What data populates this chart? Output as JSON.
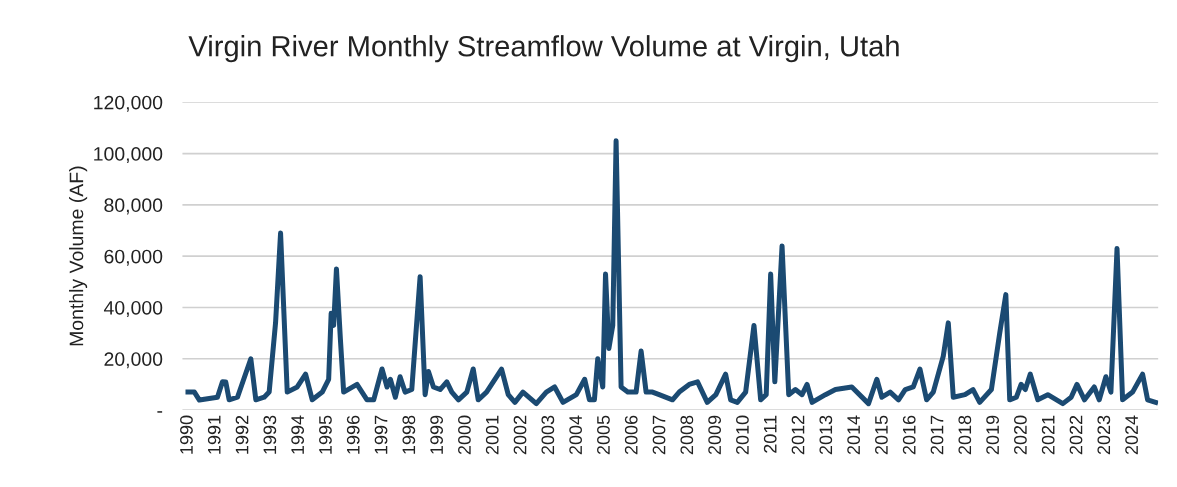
{
  "chart_data": {
    "type": "line",
    "title": "Virgin River Monthly Streamflow Volume at Virgin, Utah",
    "ylabel": "Monthly Volume (AF)",
    "series": [
      {
        "color": "#1b4a72",
        "x": [
          1990.0,
          1990.23,
          1990.41,
          1991.06,
          1991.24,
          1991.36,
          1991.48,
          1991.78,
          1992.26,
          1992.44,
          1992.74,
          1992.92,
          1993.15,
          1993.33,
          1993.57,
          1993.93,
          1994.23,
          1994.47,
          1994.83,
          1995.06,
          1995.15,
          1995.24,
          1995.34,
          1995.48,
          1995.6,
          1996.08,
          1996.44,
          1996.68,
          1996.98,
          1997.16,
          1997.28,
          1997.46,
          1997.63,
          1997.81,
          1998.05,
          1998.35,
          1998.53,
          1998.65,
          1998.83,
          1999.07,
          1999.31,
          1999.49,
          1999.73,
          2000.03,
          2000.26,
          2000.44,
          2000.74,
          2001.28,
          2001.52,
          2001.76,
          2002.05,
          2002.53,
          2002.89,
          2003.19,
          2003.49,
          2003.97,
          2004.27,
          2004.44,
          2004.62,
          2004.74,
          2004.92,
          2005.02,
          2005.14,
          2005.28,
          2005.4,
          2005.58,
          2005.82,
          2006.12,
          2006.3,
          2006.48,
          2006.71,
          2006.95,
          2007.43,
          2007.67,
          2008.03,
          2008.33,
          2008.68,
          2008.99,
          2009.34,
          2009.52,
          2009.76,
          2010.06,
          2010.36,
          2010.6,
          2010.8,
          2010.96,
          2011.11,
          2011.37,
          2011.61,
          2011.85,
          2012.09,
          2012.27,
          2012.45,
          2012.93,
          2013.29,
          2013.88,
          2014.48,
          2014.78,
          2014.96,
          2015.26,
          2015.56,
          2015.8,
          2016.09,
          2016.33,
          2016.57,
          2016.81,
          2017.17,
          2017.35,
          2017.53,
          2017.95,
          2018.24,
          2018.48,
          2018.9,
          2019.2,
          2019.42,
          2019.56,
          2019.8,
          2019.97,
          2020.12,
          2020.3,
          2020.57,
          2020.93,
          2021.47,
          2021.77,
          2021.98,
          2022.25,
          2022.6,
          2022.78,
          2023.02,
          2023.2,
          2023.42,
          2023.62,
          2023.98,
          2024.34,
          2024.52,
          2024.81
        ],
        "values": [
          7000,
          7000,
          3900,
          5000,
          11000,
          10900,
          4000,
          5000,
          20000,
          4000,
          5000,
          7000,
          34000,
          69000,
          7000,
          9000,
          14000,
          4000,
          7000,
          12000,
          37700,
          33000,
          55000,
          28000,
          7000,
          10000,
          4000,
          4000,
          16000,
          9000,
          12000,
          5000,
          13000,
          7000,
          8000,
          52000,
          6000,
          15000,
          9000,
          8000,
          11000,
          7000,
          4000,
          7000,
          16000,
          4000,
          7000,
          16000,
          6000,
          3000,
          7000,
          2500,
          7000,
          9000,
          3000,
          6000,
          12000,
          4000,
          4000,
          20000,
          9000,
          53000,
          24000,
          33000,
          105000,
          9000,
          7000,
          7000,
          23000,
          7000,
          7000,
          6000,
          4000,
          7000,
          10000,
          11000,
          3000,
          6000,
          14000,
          4000,
          3000,
          7000,
          33000,
          4000,
          6000,
          53000,
          11000,
          64000,
          6000,
          8000,
          6000,
          10000,
          3000,
          6000,
          8000,
          9000,
          2500,
          12000,
          5000,
          7000,
          4000,
          8000,
          9000,
          16000,
          4000,
          7000,
          21000,
          34000,
          5000,
          6000,
          8000,
          3000,
          8000,
          30000,
          45000,
          4000,
          5000,
          10000,
          8000,
          14000,
          4000,
          6000,
          2500,
          5000,
          10000,
          4000,
          9000,
          4000,
          13000,
          7000,
          63000,
          4000,
          7000,
          14000,
          4000,
          3000
        ]
      }
    ],
    "xlim": [
      1989.8,
      2024.9
    ],
    "xticks": [
      1990,
      1991,
      1992,
      1993,
      1994,
      1995,
      1996,
      1997,
      1998,
      1999,
      2000,
      2001,
      2002,
      2003,
      2004,
      2005,
      2006,
      2007,
      2008,
      2009,
      2010,
      2011,
      2012,
      2013,
      2014,
      2015,
      2016,
      2017,
      2018,
      2019,
      2020,
      2021,
      2022,
      2023,
      2024
    ],
    "ylim": [
      0,
      120000
    ],
    "yticks": [
      {
        "value": 0,
        "label": "-"
      },
      {
        "value": 20000,
        "label": "20,000"
      },
      {
        "value": 40000,
        "label": "40,000"
      },
      {
        "value": 60000,
        "label": "60,000"
      },
      {
        "value": 80000,
        "label": "80,000"
      },
      {
        "value": 100000,
        "label": "100,000"
      },
      {
        "value": 120000,
        "label": "120,000"
      }
    ],
    "grid": "y",
    "line_style": "solid",
    "marker": "none"
  }
}
